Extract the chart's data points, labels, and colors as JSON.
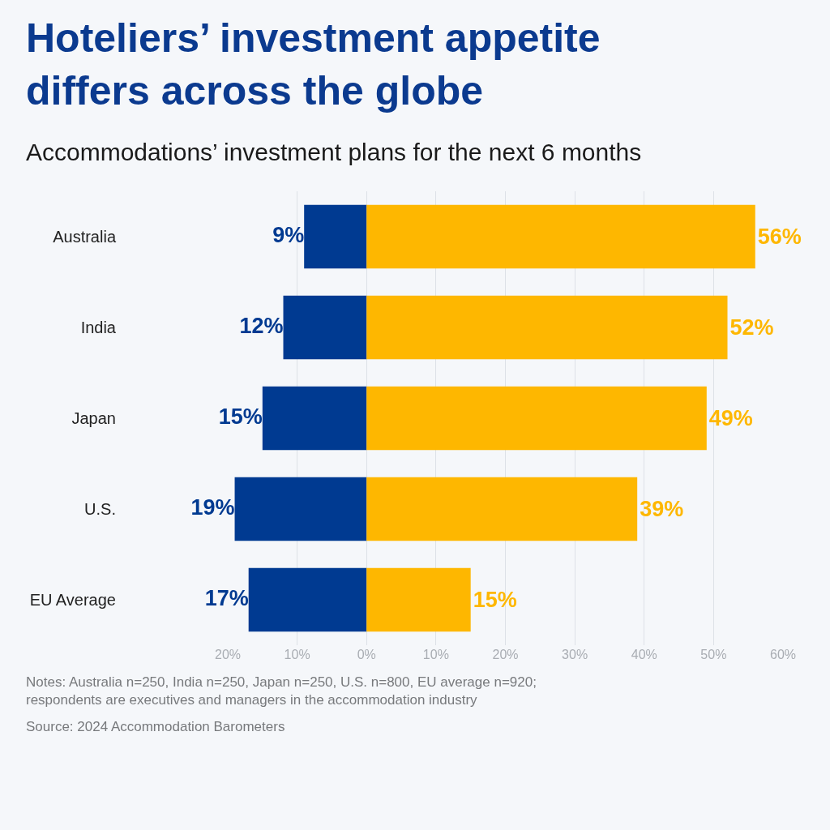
{
  "chart_data": {
    "type": "bar",
    "title": "Hoteliers’ investment appetite differs across the globe",
    "subtitle": "Accommodations’ investment plans for the next 6 months",
    "orientation": "horizontal",
    "categories": [
      "Australia",
      "India",
      "Japan",
      "U.S.",
      "EU Average"
    ],
    "series": [
      {
        "color": "#003a91",
        "values": [
          9,
          12,
          15,
          19,
          17
        ],
        "base": [
          -9,
          -12,
          -15,
          -19,
          -17
        ],
        "value_labels": [
          "9%",
          "12%",
          "15%",
          "19%",
          "17%"
        ]
      },
      {
        "color": "#feb700",
        "values": [
          56,
          52,
          49,
          39,
          15
        ],
        "value_labels": [
          "56%",
          "52%",
          "49%",
          "39%",
          "15%"
        ]
      }
    ],
    "xlim": [
      -20,
      60
    ],
    "xticks": [
      {
        "value": -20,
        "label": "20%"
      },
      {
        "value": -10,
        "label": "10%"
      },
      {
        "value": 0,
        "label": "0%"
      },
      {
        "value": 10,
        "label": "10%"
      },
      {
        "value": 20,
        "label": "20%"
      },
      {
        "value": 30,
        "label": "30%"
      },
      {
        "value": 40,
        "label": "40%"
      },
      {
        "value": 50,
        "label": "50%"
      },
      {
        "value": 60,
        "label": "60%"
      }
    ],
    "grid": "x",
    "annotations": [
      "Notes: Australia n=250, India n=250, Japan n=250, U.S. n=800, EU average n=920; respondents are executives and managers in the accommodation industry",
      "Source: 2024 Accommodation Barometers"
    ]
  }
}
